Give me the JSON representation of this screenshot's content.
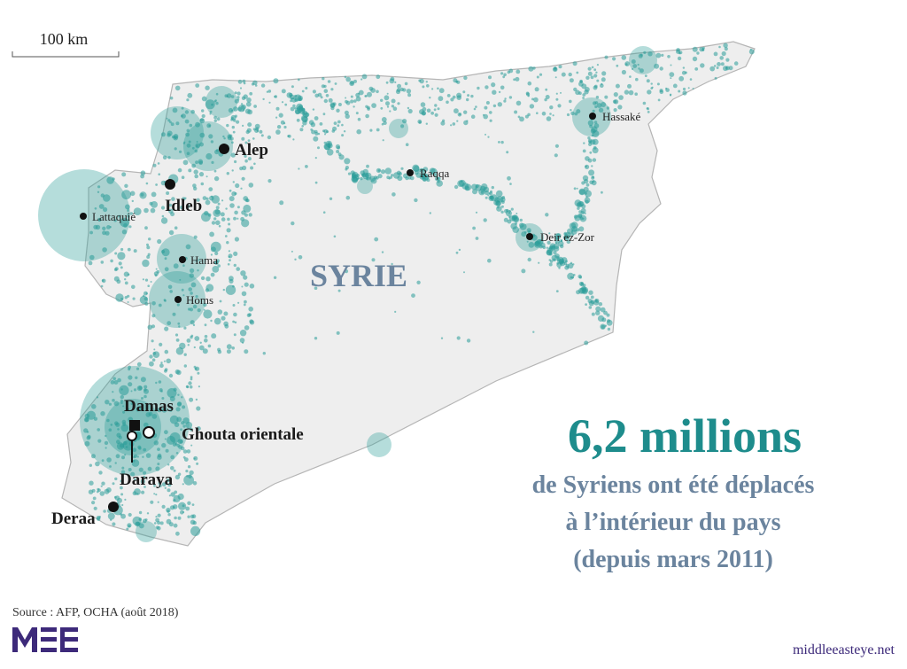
{
  "scale_label": "100 km",
  "country": "SYRIE",
  "cities": [
    "Alep",
    "Idleb",
    "Lattaquié",
    "Hama",
    "Homs",
    "Raqqa",
    "Hassaké",
    "Deir ez-Zor",
    "Damas",
    "Ghouta orientale",
    "Daraya",
    "Deraa"
  ],
  "headline": "6,2 millions",
  "subtitle": [
    "de Syriens ont été déplacés",
    "à l’intérieur du pays",
    "(depuis mars 2011)"
  ],
  "source": "Source : AFP, OCHA (août 2018)",
  "website": "middleeasteye.net"
}
